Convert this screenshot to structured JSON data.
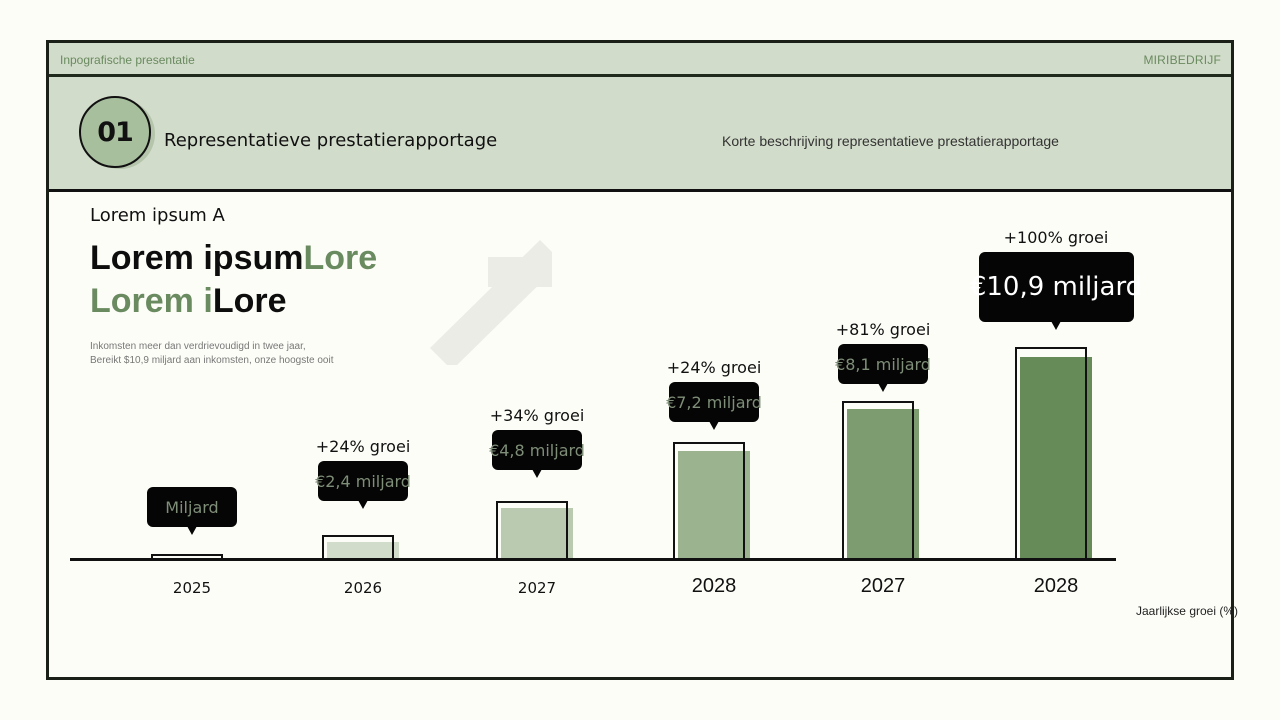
{
  "topbar": {
    "left_label": "Inpografische presentatie",
    "brand": "MIRIBEDRIJF"
  },
  "header": {
    "badge_number": "01",
    "title": "Representatieve prestatierapportage",
    "description": "Korte beschrijving representatieve prestatierapportage"
  },
  "lead": {
    "small": "Lorem ipsum A",
    "line1_dark": "Lorem ipsum",
    "line1_green": "Lore",
    "line2_green": "Lorem i",
    "line2_dark": "Lore",
    "note_line1": "Inkomsten meer dan verdrievoudigd in twee jaar,",
    "note_line2": "Bereikt $10,9 miljard aan inkomsten, onze hoogste ooit"
  },
  "colors": {
    "accent_green": "#6a8a60",
    "header_bg": "#d2dcca",
    "tooltip_bg": "#050505"
  },
  "chart_data": {
    "type": "bar",
    "title": "Lorem ipsum A",
    "xlabel": "",
    "ylabel": "",
    "axis_title": "Jaarlijkse groei (%)",
    "categories": [
      "2025",
      "2026",
      "2027",
      "2028",
      "2027",
      "2028"
    ],
    "values": [
      1.0,
      2.4,
      4.8,
      7.2,
      8.1,
      10.9
    ],
    "value_labels": [
      "Miljard",
      "€2,4 miljard",
      "€4,8 miljard",
      "€7,2 miljard",
      "€8,1 miljard",
      "€10,9 miljard"
    ],
    "growth_labels": [
      "",
      "+24% groei",
      "+34% groei",
      "+24% groei",
      "+81% groei",
      "+100% groei"
    ],
    "unit": "miljard €",
    "bar_colors": [
      "#e6e8e2",
      "#d2dcca",
      "#b9cab0",
      "#9cb38f",
      "#7d9c70",
      "#668b59"
    ],
    "grid": false,
    "legend": null
  }
}
